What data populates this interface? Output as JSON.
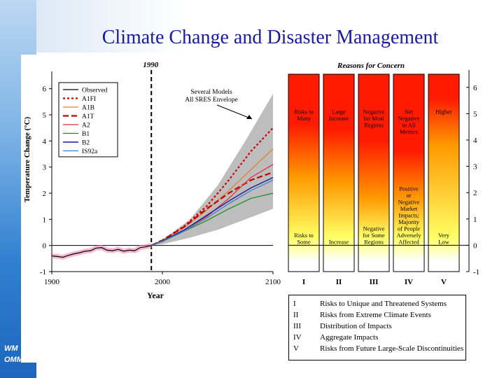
{
  "slide": {
    "title": "Climate Change and Disaster Management",
    "watermark_lines": [
      "WM",
      "OMM"
    ]
  },
  "colors": {
    "title": "#1a1aa0",
    "envelope": "#bdbdbd",
    "grad_top": "#ff1a00",
    "grad_mid": "#ff9900",
    "grad_bottom": "#ffff66"
  },
  "chart_data": [
    {
      "type": "line",
      "marker_label": "1990",
      "xlabel": "Year",
      "ylabel": "Temperature Change (°C)",
      "xlim": [
        1900,
        2100
      ],
      "ylim": [
        -1,
        6.5
      ],
      "x_ticks": [
        1900,
        2000,
        2100
      ],
      "y_ticks": [
        -1,
        0,
        1,
        2,
        3,
        4,
        5,
        6
      ],
      "annotation": "Several Models All SRES Envelope",
      "envelope": {
        "upper": [
          [
            1990,
            0
          ],
          [
            2000,
            0.2
          ],
          [
            2025,
            1.0
          ],
          [
            2050,
            2.3
          ],
          [
            2075,
            4.0
          ],
          [
            2100,
            5.8
          ]
        ],
        "lower": [
          [
            1990,
            0
          ],
          [
            2000,
            0.05
          ],
          [
            2025,
            0.3
          ],
          [
            2050,
            0.6
          ],
          [
            2075,
            1.0
          ],
          [
            2100,
            1.4
          ]
        ]
      },
      "series": [
        {
          "name": "Observed",
          "color": "#000000",
          "dash": "",
          "width": 1.2,
          "points": [
            [
              1900,
              -0.4
            ],
            [
              1905,
              -0.42
            ],
            [
              1910,
              -0.45
            ],
            [
              1915,
              -0.38
            ],
            [
              1920,
              -0.32
            ],
            [
              1925,
              -0.28
            ],
            [
              1930,
              -0.22
            ],
            [
              1935,
              -0.2
            ],
            [
              1940,
              -0.1
            ],
            [
              1945,
              -0.08
            ],
            [
              1950,
              -0.18
            ],
            [
              1955,
              -0.2
            ],
            [
              1960,
              -0.15
            ],
            [
              1965,
              -0.22
            ],
            [
              1970,
              -0.18
            ],
            [
              1975,
              -0.2
            ],
            [
              1980,
              -0.08
            ],
            [
              1985,
              -0.05
            ],
            [
              1990,
              0.0
            ]
          ]
        },
        {
          "name": "A1FI",
          "color": "#d00000",
          "dash": "3,3",
          "width": 2.2,
          "points": [
            [
              1990,
              0
            ],
            [
              2000,
              0.2
            ],
            [
              2020,
              0.75
            ],
            [
              2040,
              1.5
            ],
            [
              2060,
              2.5
            ],
            [
              2080,
              3.6
            ],
            [
              2100,
              4.5
            ]
          ]
        },
        {
          "name": "A1B",
          "color": "#e08020",
          "dash": "",
          "width": 1.2,
          "points": [
            [
              1990,
              0
            ],
            [
              2000,
              0.2
            ],
            [
              2020,
              0.7
            ],
            [
              2040,
              1.35
            ],
            [
              2060,
              2.1
            ],
            [
              2080,
              2.9
            ],
            [
              2100,
              3.7
            ]
          ]
        },
        {
          "name": "A1T",
          "color": "#c00000",
          "dash": "8,4",
          "width": 2.2,
          "points": [
            [
              1990,
              0
            ],
            [
              2000,
              0.2
            ],
            [
              2020,
              0.72
            ],
            [
              2040,
              1.4
            ],
            [
              2060,
              2.0
            ],
            [
              2080,
              2.5
            ],
            [
              2100,
              2.8
            ]
          ]
        },
        {
          "name": "A2",
          "color": "#e03030",
          "dash": "",
          "width": 1.2,
          "points": [
            [
              1990,
              0
            ],
            [
              2000,
              0.18
            ],
            [
              2020,
              0.6
            ],
            [
              2040,
              1.1
            ],
            [
              2060,
              1.8
            ],
            [
              2080,
              2.6
            ],
            [
              2100,
              3.1
            ]
          ]
        },
        {
          "name": "B1",
          "color": "#1a8a1a",
          "dash": "",
          "width": 1.2,
          "points": [
            [
              1990,
              0
            ],
            [
              2000,
              0.15
            ],
            [
              2020,
              0.55
            ],
            [
              2040,
              0.95
            ],
            [
              2060,
              1.4
            ],
            [
              2080,
              1.8
            ],
            [
              2100,
              2.0
            ]
          ]
        },
        {
          "name": "B2",
          "color": "#1a1a9a",
          "dash": "",
          "width": 1.4,
          "points": [
            [
              1990,
              0
            ],
            [
              2000,
              0.18
            ],
            [
              2020,
              0.6
            ],
            [
              2040,
              1.15
            ],
            [
              2060,
              1.7
            ],
            [
              2080,
              2.2
            ],
            [
              2100,
              2.6
            ]
          ]
        },
        {
          "name": "IS92a",
          "color": "#3a7ad0",
          "dash": "",
          "width": 1.2,
          "points": [
            [
              1990,
              0
            ],
            [
              2000,
              0.17
            ],
            [
              2020,
              0.55
            ],
            [
              2040,
              1.05
            ],
            [
              2060,
              1.6
            ],
            [
              2080,
              2.1
            ],
            [
              2100,
              2.5
            ]
          ]
        }
      ]
    },
    {
      "type": "bar",
      "title": "Reasons for Concern",
      "ylim": [
        -1,
        6.5
      ],
      "y_ticks": [
        -1,
        0,
        1,
        2,
        3,
        4,
        5,
        6
      ],
      "categories": [
        "I",
        "II",
        "III",
        "IV",
        "V"
      ],
      "bars": [
        {
          "cat": "I",
          "top_text": [
            "Risks to",
            "Many"
          ],
          "bottom_text": [
            "Risks to",
            "Some"
          ],
          "red_to": 4.6,
          "orange_to": 2.6,
          "white_below": 0
        },
        {
          "cat": "II",
          "top_text": [
            "Large",
            "Increase"
          ],
          "bottom_text": [
            "Increase"
          ],
          "red_to": 4.4,
          "orange_to": 2.4,
          "white_below": 0
        },
        {
          "cat": "III",
          "top_text": [
            "Negative",
            "for Most",
            "Regions"
          ],
          "bottom_text": [
            "Negative",
            "for Some",
            "Regions"
          ],
          "red_to": 4.0,
          "orange_to": 1.8,
          "white_below": 0
        },
        {
          "cat": "IV",
          "top_text": [
            "Net",
            "Negative",
            "in All",
            "Metrics"
          ],
          "bottom_text": [
            "Positive",
            "or",
            "Negative",
            "Market",
            "Impacts;",
            "Majority",
            "of People",
            "Adversely",
            "Affected"
          ],
          "red_to": 3.6,
          "orange_to": 1.8,
          "white_below": 0
        },
        {
          "cat": "V",
          "top_text": [
            "Higher"
          ],
          "bottom_text": [
            "Very",
            "Low"
          ],
          "red_to": 5.6,
          "orange_to": 3.8,
          "white_below": -0.2
        }
      ],
      "legend": [
        {
          "num": "I",
          "text": "Risks to Unique and Threatened Systems"
        },
        {
          "num": "II",
          "text": "Risks from Extreme Climate Events"
        },
        {
          "num": "III",
          "text": "Distribution of Impacts"
        },
        {
          "num": "IV",
          "text": "Aggregate Impacts"
        },
        {
          "num": "V",
          "text": "Risks from Future Large-Scale Discontinuities"
        }
      ]
    }
  ]
}
